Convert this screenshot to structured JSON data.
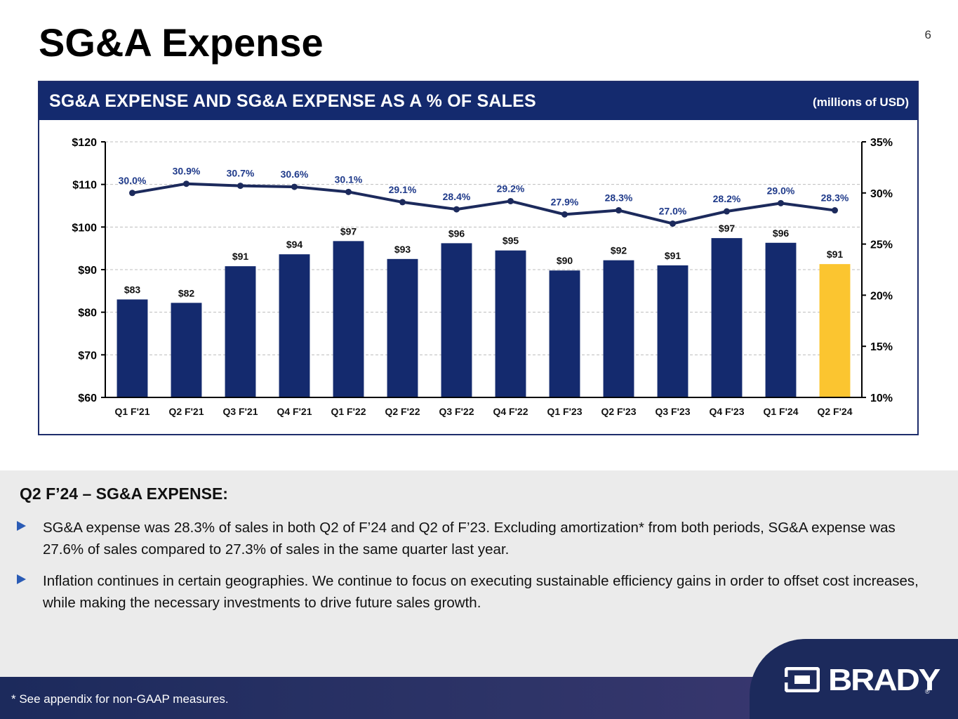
{
  "header": {
    "title": "SG&A Expense",
    "page_number": "6"
  },
  "chart_panel": {
    "title": "SG&A EXPENSE AND SG&A EXPENSE AS A % OF SALES",
    "units": "(millions of USD)"
  },
  "colors": {
    "navy": "#142a6e",
    "highlight": "#fbc530",
    "line": "#1c2a5c",
    "pct_label": "#1f3a8a"
  },
  "chart_data": {
    "type": "bar",
    "title": "SG&A EXPENSE AND SG&A EXPENSE AS A % OF SALES",
    "xlabel": "",
    "ylabel": "",
    "categories": [
      "Q1 F'21",
      "Q2 F'21",
      "Q3 F'21",
      "Q4 F'21",
      "Q1 F'22",
      "Q2 F'22",
      "Q3 F'22",
      "Q4 F'22",
      "Q1 F'23",
      "Q2 F'23",
      "Q3 F'23",
      "Q4 F'23",
      "Q1 F'24",
      "Q2 F'24"
    ],
    "series": [
      {
        "name": "SG&A Expense ($M)",
        "type": "bar",
        "axis": "left",
        "values": [
          83,
          82.2,
          90.8,
          93.6,
          96.7,
          92.5,
          96.2,
          94.5,
          89.8,
          92.2,
          91,
          97.4,
          96.3,
          91.3
        ],
        "labels": [
          "$83",
          "$82",
          "$91",
          "$94",
          "$97",
          "$93",
          "$96",
          "$95",
          "$90",
          "$92",
          "$91",
          "$97",
          "$96",
          "$91"
        ],
        "highlight_index": 13
      },
      {
        "name": "SG&A as % of Sales",
        "type": "line",
        "axis": "right",
        "values": [
          30.0,
          30.9,
          30.7,
          30.6,
          30.1,
          29.1,
          28.4,
          29.2,
          27.9,
          28.3,
          27.0,
          28.2,
          29.0,
          28.3
        ],
        "labels": [
          "30.0%",
          "30.9%",
          "30.7%",
          "30.6%",
          "30.1%",
          "29.1%",
          "28.4%",
          "29.2%",
          "27.9%",
          "28.3%",
          "27.0%",
          "28.2%",
          "29.0%",
          "28.3%"
        ]
      }
    ],
    "y_left": {
      "min": 60,
      "max": 120,
      "step": 10,
      "ticks": [
        "$60",
        "$70",
        "$80",
        "$90",
        "$100",
        "$110",
        "$120"
      ]
    },
    "y_right": {
      "min": 10,
      "max": 35,
      "step": 5,
      "ticks": [
        "10%",
        "15%",
        "20%",
        "25%",
        "30%",
        "35%"
      ]
    },
    "grid": true
  },
  "commentary": {
    "heading": "Q2 F’24 – SG&A EXPENSE:",
    "bullets": [
      "SG&A expense was 28.3% of sales in both Q2 of F’24 and Q2 of F’23.  Excluding amortization* from both periods, SG&A expense was 27.6% of sales compared to 27.3% of sales in the same quarter last year.",
      "Inflation continues in certain geographies.  We continue to focus on executing sustainable efficiency gains in order to offset cost increases, while making the necessary investments to drive future sales growth."
    ]
  },
  "footer": {
    "footnote": "*   See appendix for non-GAAP measures.",
    "logo_text": "BRADY",
    "logo_mark": "®"
  }
}
